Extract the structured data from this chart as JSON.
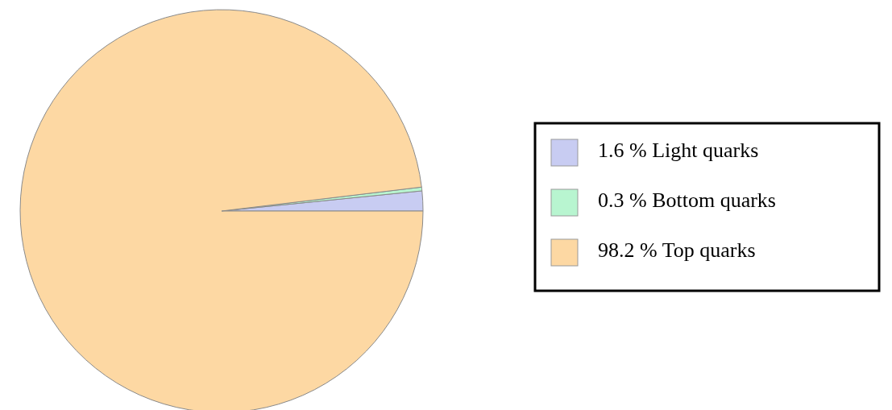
{
  "chart_data": {
    "type": "pie",
    "categories": [
      "1.6 % Light quarks",
      "0.3 % Bottom quarks",
      "98.2 % Top quarks"
    ],
    "values": [
      1.6,
      0.3,
      98.2
    ],
    "colors": [
      "#c8ccf2",
      "#b8f5d0",
      "#fdd8a3"
    ],
    "legend": "right"
  }
}
